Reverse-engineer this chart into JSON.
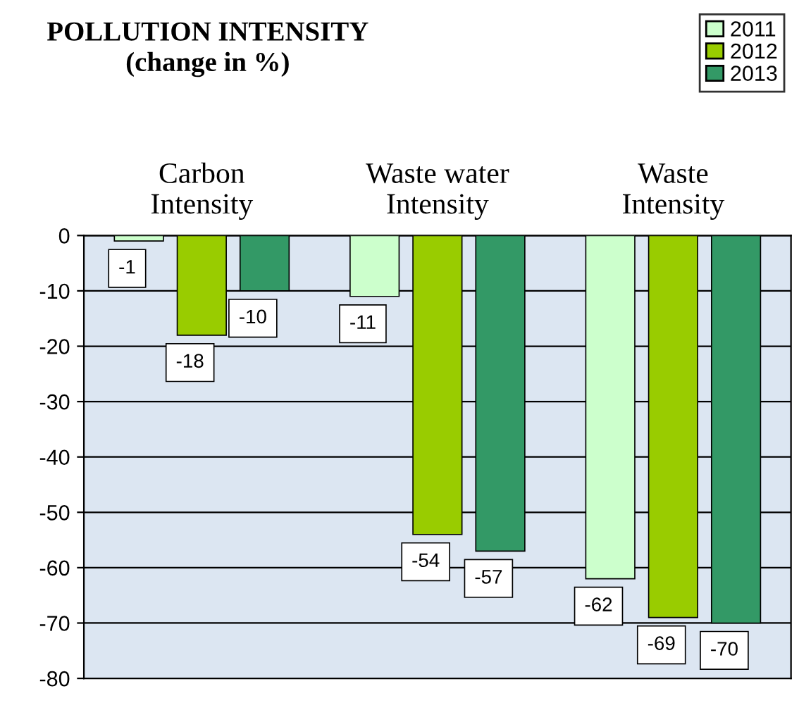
{
  "chart_data": {
    "type": "bar",
    "title": "POLLUTION INTENSITY\n(change in %)",
    "categories": [
      "Carbon\nIntensity",
      "Waste water\nIntensity",
      "Waste\nIntensity"
    ],
    "series": [
      {
        "name": "2011",
        "color": "#ccffcc",
        "values": [
          -1,
          -11,
          -62
        ]
      },
      {
        "name": "2012",
        "color": "#99cc00",
        "values": [
          -18,
          -54,
          -69
        ]
      },
      {
        "name": "2013",
        "color": "#339966",
        "values": [
          -10,
          -57,
          -70
        ]
      }
    ],
    "ylim": [
      -80,
      0
    ],
    "yticks": [
      0,
      -10,
      -20,
      -30,
      -40,
      -50,
      -60,
      -70,
      -80
    ],
    "grid": "y",
    "legend": "top right",
    "data_labels": true
  }
}
